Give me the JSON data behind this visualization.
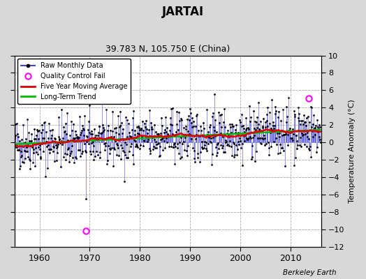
{
  "title": "JARTAI",
  "subtitle": "39.783 N, 105.750 E (China)",
  "ylabel": "Temperature Anomaly (°C)",
  "watermark": "Berkeley Earth",
  "ylim": [
    -12,
    10
  ],
  "xlim": [
    1955,
    2016
  ],
  "yticks": [
    -12,
    -10,
    -8,
    -6,
    -4,
    -2,
    0,
    2,
    4,
    6,
    8,
    10
  ],
  "xticks": [
    1960,
    1970,
    1980,
    1990,
    2000,
    2010
  ],
  "bg_color": "#d8d8d8",
  "plot_bg_color": "#ffffff",
  "raw_line_color": "#4444dd",
  "raw_dot_color": "#000000",
  "moving_avg_color": "#dd0000",
  "trend_color": "#00bb00",
  "qc_fail_color": "#ff00ff",
  "seed": 42,
  "n_months": 732,
  "start_year": 1955.0,
  "qc_fail_points": [
    {
      "year": 1969.25,
      "value": -10.2
    },
    {
      "year": 2013.6,
      "value": 5.1
    }
  ]
}
